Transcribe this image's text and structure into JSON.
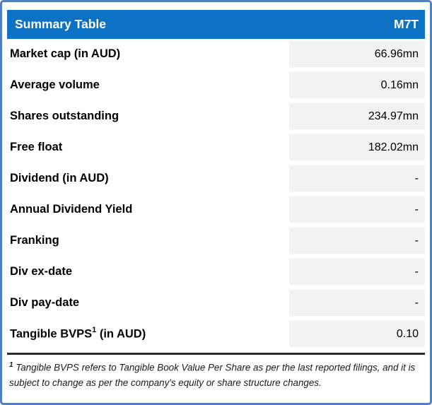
{
  "header": {
    "title": "Summary Table",
    "ticker": "M7T"
  },
  "rows": [
    {
      "label": "Market cap (in AUD)",
      "value": "66.96mn"
    },
    {
      "label": "Average volume",
      "value": "0.16mn"
    },
    {
      "label": "Shares outstanding",
      "value": "234.97mn"
    },
    {
      "label": "Free float",
      "value": "182.02mn"
    },
    {
      "label": "Dividend (in AUD)",
      "value": "-"
    },
    {
      "label": "Annual Dividend Yield",
      "value": "-"
    },
    {
      "label": "Franking",
      "value": "-"
    },
    {
      "label": "Div ex-date",
      "value": "-"
    },
    {
      "label": "Div pay-date",
      "value": "-"
    },
    {
      "label": "Tangible BVPS",
      "label_sup": "1",
      "label_suffix": " (in AUD)",
      "value": "0.10"
    }
  ],
  "footnote": {
    "sup": "1",
    "text": " Tangible BVPS refers to Tangible Book Value Per Share as per the last reported filings, and it is subject to change as per the company's equity or share structure changes."
  },
  "colors": {
    "outer_border": "#4E81BE",
    "header_bg": "#0D72C4",
    "header_text": "#FFFFFF",
    "value_cell_bg": "#F2F2F2",
    "divider": "#2B2B2B",
    "label_text": "#000000"
  }
}
